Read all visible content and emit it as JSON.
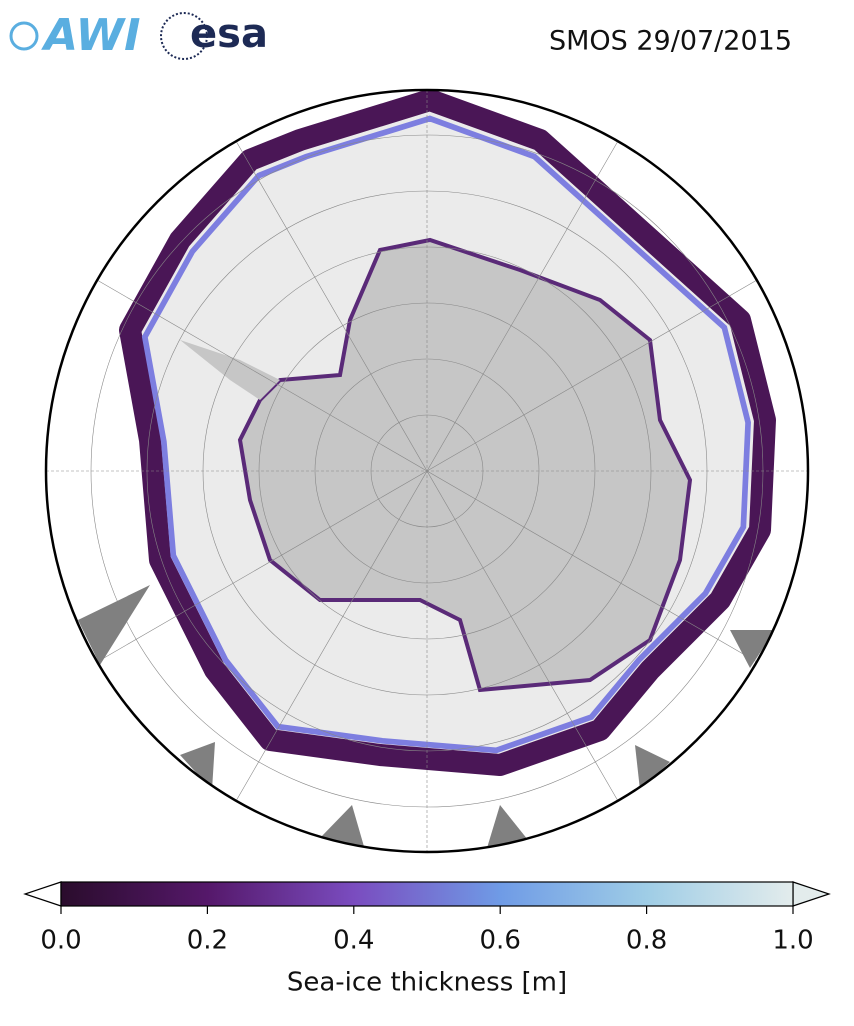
{
  "header": {
    "logos": [
      "AWI",
      "esa"
    ],
    "title": "SMOS 29/07/2015"
  },
  "colorbar": {
    "label": "Sea-ice thickness [m]",
    "lim": [
      0,
      1
    ],
    "ticks": [
      {
        "value": 0,
        "label": "0.0"
      },
      0.2,
      0.4,
      0.6,
      0.8,
      {
        "value": 1,
        "label": "1.0"
      }
    ],
    "colors": [
      "#2a0c2c",
      "#55186a",
      "#7a4cbf",
      "#6f9be6",
      "#9fcde6",
      "#e3ecec"
    ]
  }
}
